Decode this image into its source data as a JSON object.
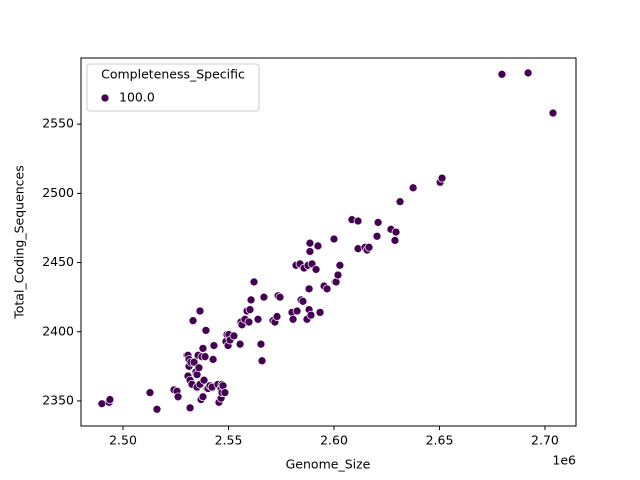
{
  "chart_data": {
    "type": "scatter",
    "xlabel": "Genome_Size",
    "ylabel": "Total_Coding_Sequences",
    "x_offset_label": "1e6",
    "legend_title": "Completeness_Specific",
    "legend_loc": "upper left",
    "xlim": [
      2480100,
      2714700
    ],
    "ylim": [
      2331.9,
      2597.8
    ],
    "xticks": [
      {
        "value": 2500000,
        "label": "2.50"
      },
      {
        "value": 2550000,
        "label": "2.55"
      },
      {
        "value": 2600000,
        "label": "2.60"
      },
      {
        "value": 2650000,
        "label": "2.65"
      },
      {
        "value": 2700000,
        "label": "2.70"
      }
    ],
    "yticks": [
      2350,
      2400,
      2450,
      2500,
      2550
    ],
    "series": [
      {
        "name": "100.0",
        "color": "#440154",
        "x": [
          2490000,
          2493400,
          2493800,
          2512800,
          2516100,
          2524200,
          2525600,
          2526100,
          2530300,
          2530800,
          2530800,
          2531300,
          2531300,
          2531800,
          2531800,
          2532200,
          2532700,
          2533200,
          2533700,
          2534600,
          2535100,
          2535100,
          2535600,
          2536000,
          2536500,
          2536500,
          2537000,
          2537400,
          2537900,
          2537900,
          2538400,
          2538900,
          2539300,
          2539800,
          2540300,
          2541200,
          2542200,
          2542700,
          2543100,
          2545000,
          2545500,
          2546500,
          2546500,
          2546900,
          2546900,
          2547400,
          2548300,
          2548800,
          2549300,
          2549800,
          2550200,
          2550700,
          2552600,
          2555500,
          2555900,
          2556400,
          2557800,
          2558800,
          2559700,
          2560200,
          2560700,
          2562100,
          2564000,
          2565400,
          2565900,
          2566800,
          2571100,
          2572000,
          2573000,
          2573500,
          2574400,
          2580100,
          2580600,
          2582000,
          2582500,
          2583900,
          2584400,
          2585300,
          2585800,
          2587200,
          2587700,
          2588200,
          2588200,
          2588600,
          2588600,
          2589100,
          2589600,
          2591500,
          2592400,
          2593400,
          2595300,
          2596700,
          2600000,
          2600500,
          2601000,
          2601900,
          2602800,
          2608500,
          2611400,
          2611400,
          2614700,
          2615700,
          2616600,
          2620400,
          2620900,
          2627000,
          2628900,
          2629400,
          2631300,
          2637500,
          2650300,
          2651200,
          2679600,
          2692000,
          2703800
        ],
        "values": [
          2348,
          2349,
          2351,
          2356,
          2344,
          2358,
          2357,
          2353,
          2383,
          2383,
          2368,
          2380,
          2375,
          2365,
          2345,
          2378,
          2362,
          2408,
          2378,
          2371,
          2369,
          2360,
          2383,
          2374,
          2362,
          2415,
          2351,
          2382,
          2353,
          2388,
          2365,
          2382,
          2401,
          2359,
          2359,
          2361,
          2360,
          2380,
          2390,
          2362,
          2349,
          2352,
          2359,
          2362,
          2356,
          2361,
          2356,
          2393,
          2398,
          2390,
          2398,
          2394,
          2397,
          2391,
          2407,
          2405,
          2409,
          2415,
          2407,
          2416,
          2423,
          2436,
          2409,
          2391,
          2379,
          2425,
          2408,
          2407,
          2411,
          2426,
          2425,
          2414,
          2409,
          2448,
          2415,
          2449,
          2423,
          2422,
          2446,
          2409,
          2448,
          2416,
          2431,
          2464,
          2458,
          2412,
          2449,
          2445,
          2462,
          2414,
          2433,
          2431,
          2467,
          2436,
          2436,
          2441,
          2448,
          2481,
          2480,
          2460,
          2461,
          2459,
          2461,
          2469,
          2479,
          2474,
          2466,
          2472,
          2494,
          2504,
          2508,
          2511,
          2586,
          2587,
          2558
        ]
      }
    ]
  }
}
